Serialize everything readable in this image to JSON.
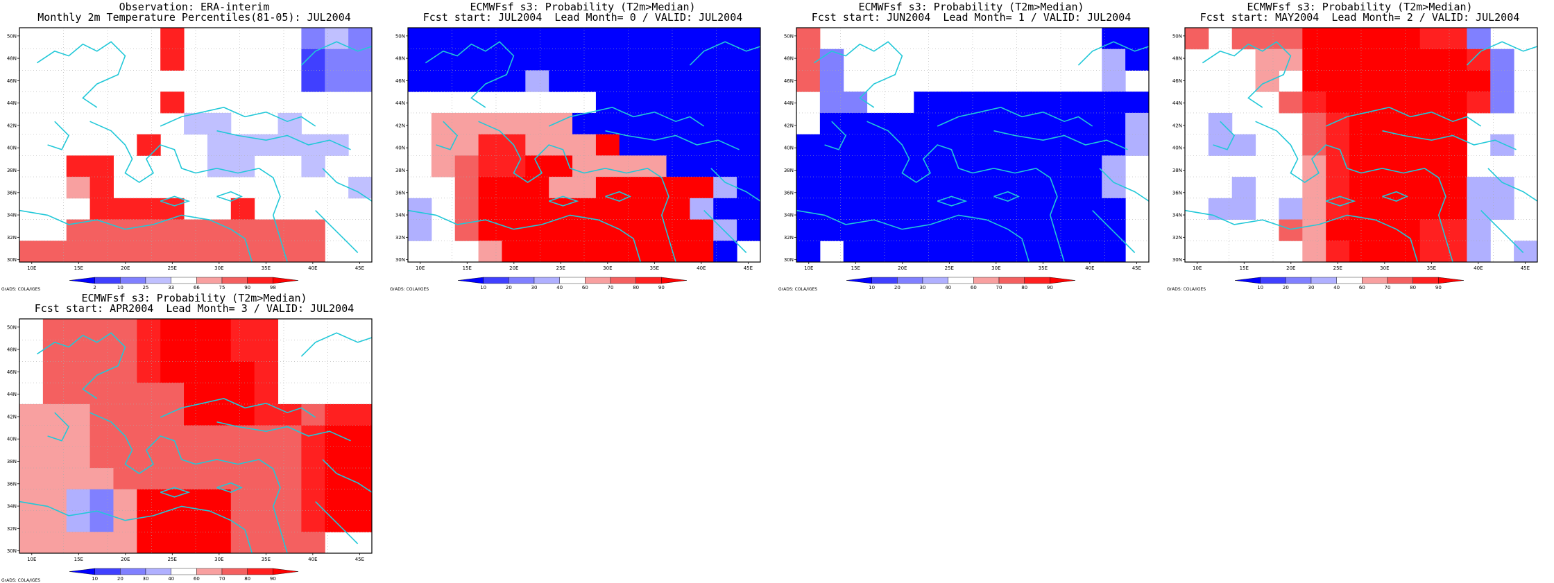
{
  "legend_obs": {
    "labels": [
      "2",
      "10",
      "25",
      "33",
      "66",
      "75",
      "90",
      "98"
    ],
    "colors": [
      "#0000ff",
      "#4040ff",
      "#8080ff",
      "#c0c0ff",
      "#ffffff",
      "#f8a0a0",
      "#f46060",
      "#ff2020",
      "#ff0000"
    ]
  },
  "legend_prob": {
    "labels": [
      "10",
      "20",
      "30",
      "40",
      "60",
      "70",
      "80",
      "90"
    ],
    "colors": [
      "#0000ff",
      "#4040ff",
      "#8080ff",
      "#b0b0ff",
      "#ffffff",
      "#f8a0a0",
      "#f46060",
      "#ff2020",
      "#ff0000"
    ]
  },
  "xticks": [
    "10E",
    "15E",
    "20E",
    "25E",
    "30E",
    "35E",
    "40E",
    "45E"
  ],
  "yticks": [
    "30N",
    "32N",
    "34N",
    "36N",
    "38N",
    "40N",
    "42N",
    "44N",
    "46N",
    "48N",
    "50N"
  ],
  "credit": "GrADS: COLA/IGES",
  "panels": [
    {
      "title1": "Observation: ERA-interim",
      "title2": "Monthly 2m Temperature Percentiles(81-05): JUL2004",
      "legend": "obs",
      "grid": [
        "000000000080000000000BB00B000000000000000000000BA0000000000000000000000000000B000000000000000000000B00000A00000000000ABBBBB00000000A0000000000000000000007000000000000000000000008000000000000000000000000BB0000000000000000000000000A8888800000000000000000000000000007A8887000000000000000000000B00000A888888887000000000000888A8888880000"
      ]
    },
    {
      "title1": "ECMWFsf s3: Probability (T2m>Median)",
      "title2": "Fcst start: JUL2004  Lead Month= 0 / VALID: JUL2004",
      "legend": "prob"
    },
    {
      "title1": "ECMWFsf s3: Probability (T2m>Median)",
      "title2": "Fcst start: JUN2004  Lead Month= 1 / VALID: JUL2004",
      "legend": "prob"
    },
    {
      "title1": "ECMWFsf s3: Probability (T2m>Median)",
      "title2": "Fcst start: MAY2004  Lead Month= 2 / VALID: JUL2004",
      "legend": "prob"
    },
    {
      "title1": "ECMWFsf s3: Probability (T2m>Median)",
      "title2": "Fcst start: APR2004  Lead Month= 3 / VALID: JUL2004",
      "legend": "prob"
    }
  ]
}
